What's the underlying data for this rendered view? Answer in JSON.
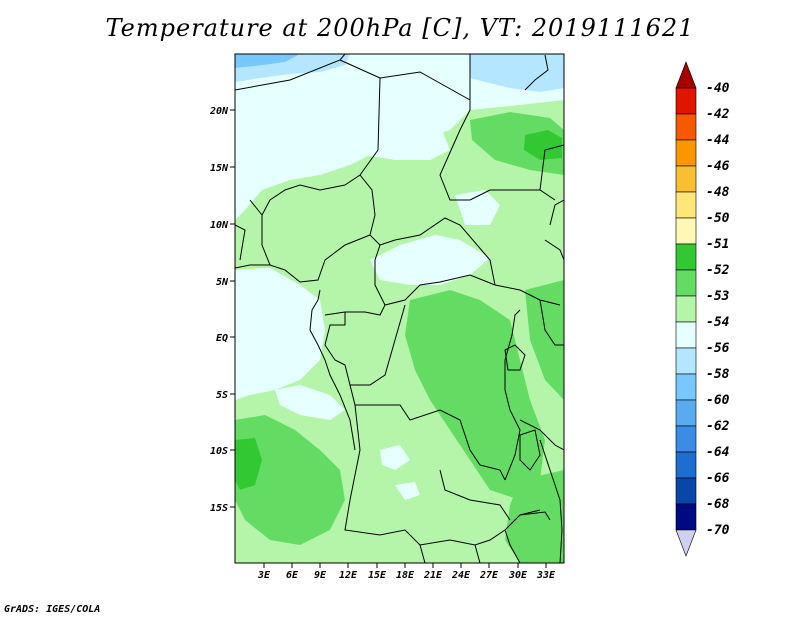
{
  "title": "Temperature at 200hPa [C], VT: 2019111621",
  "credit": "GrADS: IGES/COLA",
  "map": {
    "lat_labels": [
      "20N",
      "15N",
      "10N",
      "5N",
      "EQ",
      "5S",
      "10S",
      "15S"
    ],
    "lon_labels": [
      "3E",
      "6E",
      "9E",
      "12E",
      "15E",
      "18E",
      "21E",
      "24E",
      "27E",
      "30E",
      "33E"
    ]
  },
  "colorbar": {
    "labels": [
      "-40",
      "-42",
      "-44",
      "-46",
      "-48",
      "-50",
      "-51",
      "-52",
      "-53",
      "-54",
      "-56",
      "-58",
      "-60",
      "-62",
      "-64",
      "-66",
      "-68",
      "-70"
    ],
    "colors": [
      "#a50000",
      "#e11400",
      "#f55a00",
      "#fa9600",
      "#fabe32",
      "#fee678",
      "#fff8b4",
      "#32c832",
      "#64dc64",
      "#b4f5aa",
      "#e6ffff",
      "#b4e6ff",
      "#78c8ff",
      "#5aaaf0",
      "#3c8ce6",
      "#1e6ed2",
      "#0a46aa",
      "#000a80",
      "#d0d0f0"
    ]
  },
  "colors": {
    "c_54": "#e6ffff",
    "c_53": "#b4f5aa",
    "c_52": "#64dc64",
    "c_51": "#32c832",
    "c_56": "#b4e6ff",
    "c_58": "#78c8ff"
  }
}
